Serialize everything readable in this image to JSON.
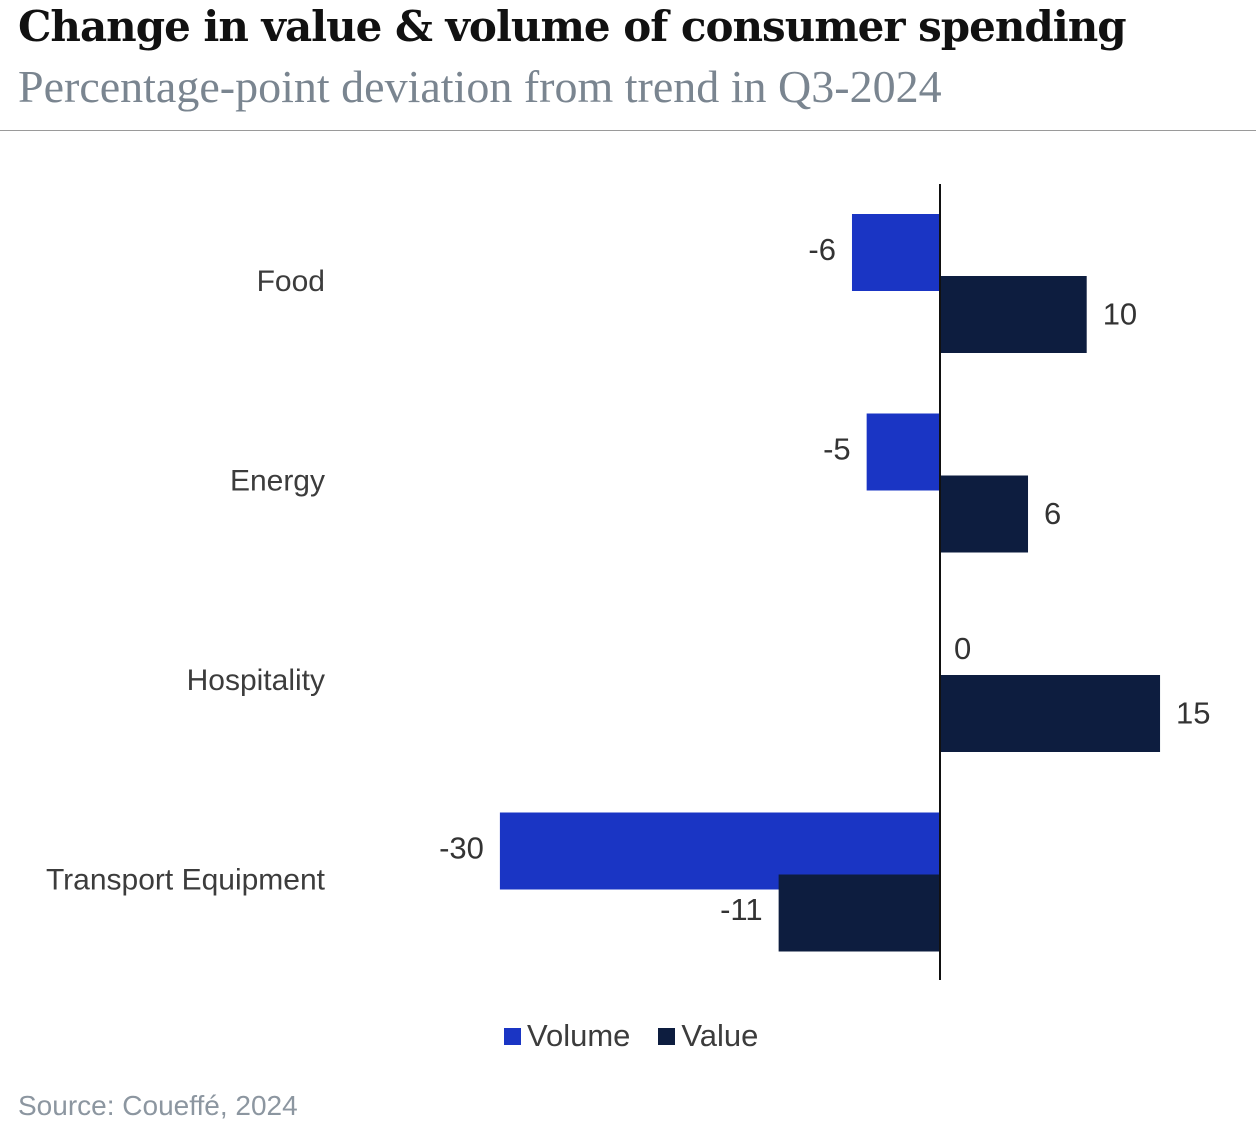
{
  "header": {
    "title": "Change in value & volume of  consumer spending",
    "subtitle": "Percentage-point deviation from trend in Q3-2024"
  },
  "chart_data": {
    "type": "bar",
    "orientation": "horizontal",
    "categories": [
      "Food",
      "Energy",
      "Hospitality",
      "Transport Equipment"
    ],
    "series": [
      {
        "name": "Volume",
        "color": "#1a35c4",
        "values": [
          -6,
          -5,
          0,
          -30
        ]
      },
      {
        "name": "Value",
        "color": "#0d1d3f",
        "values": [
          10,
          6,
          15,
          -11
        ]
      }
    ],
    "xlim": [
      -30,
      15
    ],
    "legend": "bottom-center",
    "gridlines": false
  },
  "footer": {
    "source": "Source: Coueffé, 2024"
  }
}
